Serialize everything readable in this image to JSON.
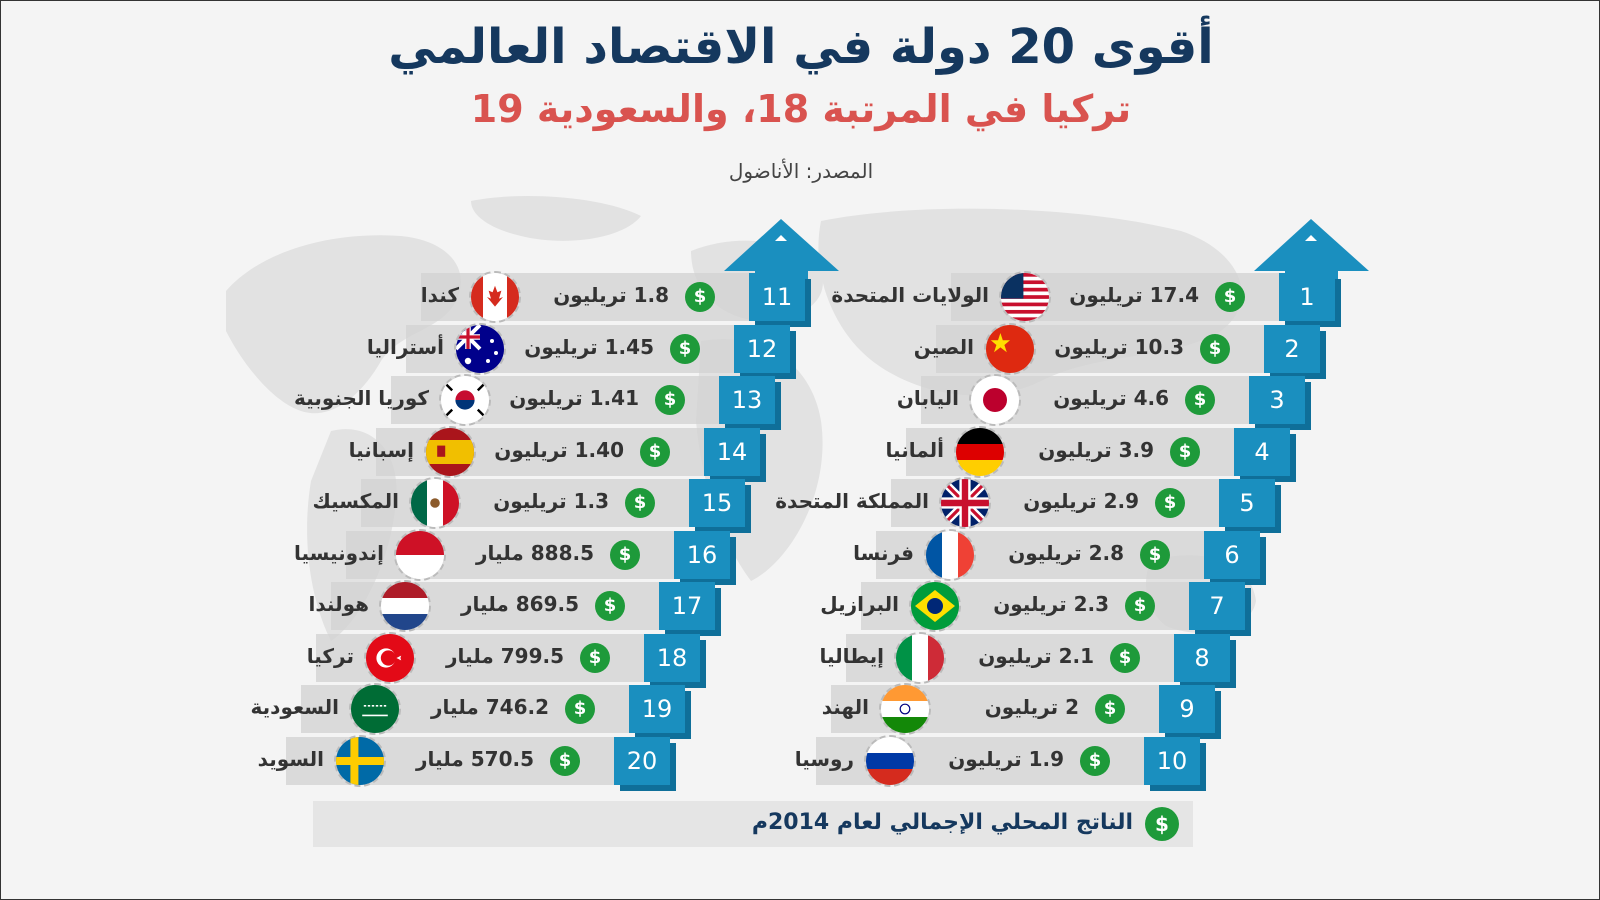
{
  "header": {
    "title": "أقوى 20 دولة في الاقتصاد العالمي",
    "subtitle_prefix": "تركيا في المرتبة ",
    "subtitle_turkey_rank": "18",
    "subtitle_mid": "، والسعودية ",
    "subtitle_saudi_rank": "19",
    "source": "المصدر: الأناضول"
  },
  "currency_icon": "$",
  "rankings": [
    {
      "rank": "1",
      "country": "الولايات المتحدة",
      "gdp": "17.4 تريليون",
      "flag": "us-flag-icon"
    },
    {
      "rank": "2",
      "country": "الصين",
      "gdp": "10.3 تريليون",
      "flag": "china-flag-icon"
    },
    {
      "rank": "3",
      "country": "اليابان",
      "gdp": "4.6 تريليون",
      "flag": "japan-flag-icon"
    },
    {
      "rank": "4",
      "country": "ألمانيا",
      "gdp": "3.9 تريليون",
      "flag": "germany-flag-icon"
    },
    {
      "rank": "5",
      "country": "المملكة المتحدة",
      "gdp": "2.9 تريليون",
      "flag": "uk-flag-icon"
    },
    {
      "rank": "6",
      "country": "فرنسا",
      "gdp": "2.8 تريليون",
      "flag": "france-flag-icon"
    },
    {
      "rank": "7",
      "country": "البرازيل",
      "gdp": "2.3 تريليون",
      "flag": "brazil-flag-icon"
    },
    {
      "rank": "8",
      "country": "إيطاليا",
      "gdp": "2.1 تريليون",
      "flag": "italy-flag-icon"
    },
    {
      "rank": "9",
      "country": "الهند",
      "gdp": "2 تريليون",
      "flag": "india-flag-icon"
    },
    {
      "rank": "10",
      "country": "روسيا",
      "gdp": "1.9 تريليون",
      "flag": "russia-flag-icon"
    },
    {
      "rank": "11",
      "country": "كندا",
      "gdp": "1.8 تريليون",
      "flag": "canada-flag-icon"
    },
    {
      "rank": "12",
      "country": "أستراليا",
      "gdp": "1.45 تريليون",
      "flag": "australia-flag-icon"
    },
    {
      "rank": "13",
      "country": "كوريا الجنوبية",
      "gdp": "1.41 تريليون",
      "flag": "south-korea-flag-icon"
    },
    {
      "rank": "14",
      "country": "إسبانيا",
      "gdp": "1.40 تريليون",
      "flag": "spain-flag-icon"
    },
    {
      "rank": "15",
      "country": "المكسيك",
      "gdp": "1.3 تريليون",
      "flag": "mexico-flag-icon"
    },
    {
      "rank": "16",
      "country": "إندونيسيا",
      "gdp": "888.5 مليار",
      "flag": "indonesia-flag-icon"
    },
    {
      "rank": "17",
      "country": "هولندا",
      "gdp": "869.5 مليار",
      "flag": "netherlands-flag-icon"
    },
    {
      "rank": "18",
      "country": "تركيا",
      "gdp": "799.5 مليار",
      "flag": "turkey-flag-icon"
    },
    {
      "rank": "19",
      "country": "السعودية",
      "gdp": "746.2 مليار",
      "flag": "saudi-flag-icon"
    },
    {
      "rank": "20",
      "country": "السويد",
      "gdp": "570.5 مليار",
      "flag": "sweden-flag-icon"
    }
  ],
  "legend": {
    "label": "الناتج المحلي الإجمالي لعام 2014م"
  }
}
